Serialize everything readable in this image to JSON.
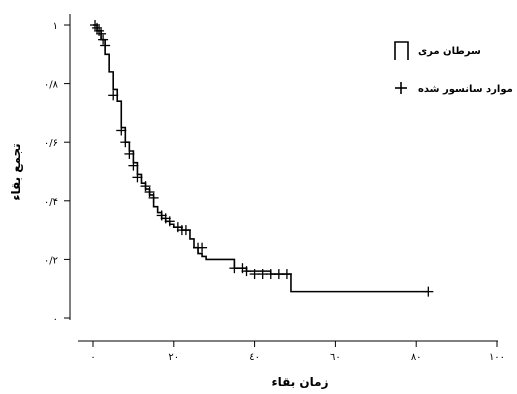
{
  "chart_data": {
    "type": "line",
    "xlabel": "زمان بقاء",
    "ylabel": "تجمع بقاء",
    "xlim": [
      0,
      100
    ],
    "ylim": [
      0,
      1
    ],
    "x_ticks": [
      0,
      20,
      40,
      60,
      80,
      100
    ],
    "x_tick_labels": [
      "٠",
      "٢٠",
      "٤٠",
      "٦٠",
      "٨٠",
      "١٠٠"
    ],
    "y_ticks": [
      0,
      0.2,
      0.4,
      0.6,
      0.8,
      1
    ],
    "y_tick_labels": [
      "٠",
      "٠/٢",
      "٠/۴",
      "٠/۶",
      "٠/٨",
      "١"
    ],
    "legend_position": "top-right",
    "series": [
      {
        "name": "سرطان مری",
        "style": "step",
        "x": [
          0,
          1,
          2,
          3,
          4,
          5,
          6,
          7,
          8,
          9,
          10,
          11,
          12,
          13,
          14,
          15,
          16,
          17,
          18,
          19,
          20,
          22,
          24,
          25,
          26,
          27,
          28,
          31,
          33,
          35,
          38,
          44,
          48,
          49,
          83
        ],
        "y": [
          1,
          0.98,
          0.95,
          0.9,
          0.84,
          0.78,
          0.74,
          0.65,
          0.6,
          0.57,
          0.53,
          0.49,
          0.46,
          0.44,
          0.42,
          0.38,
          0.36,
          0.34,
          0.33,
          0.32,
          0.31,
          0.3,
          0.27,
          0.24,
          0.22,
          0.21,
          0.2,
          0.2,
          0.2,
          0.17,
          0.16,
          0.15,
          0.15,
          0.09,
          0.09
        ]
      },
      {
        "name": "موارد سانسور شده",
        "style": "censor-marks",
        "x": [
          0.5,
          1,
          1.5,
          2,
          2.5,
          3,
          5,
          7,
          8,
          9,
          10,
          11,
          13,
          14,
          15,
          17,
          18,
          19,
          21,
          22,
          23,
          26,
          27,
          35,
          37,
          38,
          40,
          42,
          44,
          46,
          48,
          83
        ],
        "y": [
          1,
          0.99,
          0.98,
          0.97,
          0.95,
          0.93,
          0.76,
          0.64,
          0.6,
          0.56,
          0.52,
          0.48,
          0.45,
          0.43,
          0.41,
          0.35,
          0.34,
          0.33,
          0.31,
          0.3,
          0.3,
          0.24,
          0.24,
          0.17,
          0.17,
          0.16,
          0.15,
          0.15,
          0.15,
          0.15,
          0.15,
          0.09
        ]
      }
    ]
  }
}
